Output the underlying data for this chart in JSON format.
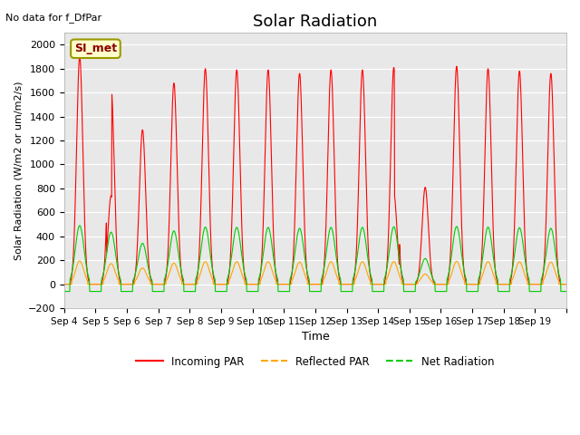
{
  "title": "Solar Radiation",
  "subtitle": "No data for f_DfPar",
  "xlabel": "Time",
  "ylabel": "Solar Radiation (W/m2 or um/m2/s)",
  "ylim": [
    -200,
    2100
  ],
  "yticks": [
    -200,
    0,
    200,
    400,
    600,
    800,
    1000,
    1200,
    1400,
    1600,
    1800,
    2000
  ],
  "n_days": 16,
  "bg_color": "#e8e8e8",
  "legend_label": "SI_met",
  "colors": {
    "incoming": "#ff0000",
    "reflected": "#ffa500",
    "net": "#00cc00"
  },
  "line_labels": [
    "Incoming PAR",
    "Reflected PAR",
    "Net Radiation"
  ],
  "line_colors": [
    "#ff0000",
    "#ffa500",
    "#00cc00"
  ],
  "incoming_peaks": [
    1900,
    1640,
    1290,
    1680,
    1800,
    1790,
    1790,
    1760,
    1790,
    1790,
    1810,
    810,
    1820,
    1800,
    1780,
    1760
  ],
  "days": [
    "Sep 4",
    "Sep 5",
    "Sep 6",
    "Sep 7",
    "Sep 8",
    "Sep 9",
    "Sep 10",
    "Sep 11",
    "Sep 12",
    "Sep 13",
    "Sep 14",
    "Sep 15",
    "Sep 16",
    "Sep 17",
    "Sep 18",
    "Sep 19"
  ]
}
